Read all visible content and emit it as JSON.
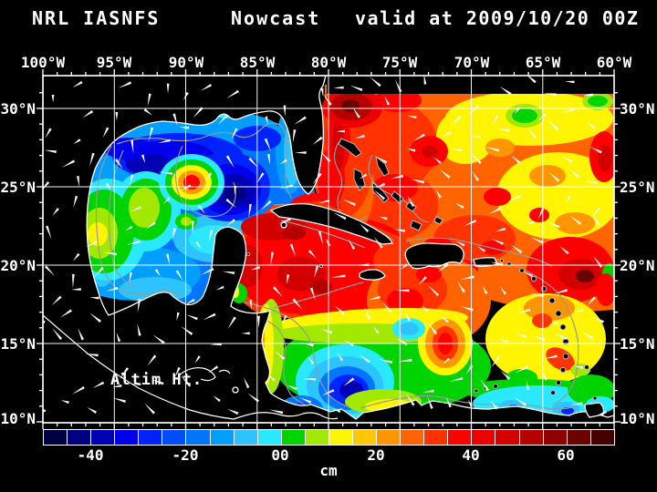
{
  "title": {
    "left": "NRL IASNFS",
    "center": "Nowcast",
    "right": "valid at 2009/10/20 00Z"
  },
  "map_label": "Altim Ht.",
  "axes": {
    "lon_labels": [
      "100°W",
      "95°W",
      "90°W",
      "85°W",
      "80°W",
      "75°W",
      "70°W",
      "65°W",
      "60°W"
    ],
    "lat_labels_left": [
      "30°N",
      "25°N",
      "20°N",
      "15°N",
      "10°N"
    ],
    "lat_labels_right": [
      "30°N",
      "25°N",
      "20°N",
      "15°N",
      "10°N"
    ]
  },
  "colorbar": {
    "unit": "cm",
    "tick_labels": [
      "-40",
      "-20",
      "00",
      "20",
      "40",
      "60"
    ],
    "min": -50,
    "max": 70,
    "interval": 5,
    "colors": [
      "#000042",
      "#00007f",
      "#0000b4",
      "#0000ec",
      "#0023ff",
      "#004cff",
      "#0075ff",
      "#009eff",
      "#2dc3ff",
      "#29e8ff",
      "#00d400",
      "#a3e800",
      "#fff500",
      "#ffc800",
      "#ff9600",
      "#ff6400",
      "#ff3200",
      "#ff0000",
      "#ee0000",
      "#d40000",
      "#b40000",
      "#8f0000",
      "#6b0000",
      "#460000"
    ]
  },
  "chart_data": {
    "type": "heatmap",
    "title": "NRL IASNFS Nowcast valid at 2009/10/20 00Z",
    "variable": "Altim Ht. (altimeter sea surface height anomaly)",
    "units": "cm",
    "x_axis": {
      "ticks": [
        "100°W",
        "95°W",
        "90°W",
        "85°W",
        "80°W",
        "75°W",
        "70°W",
        "65°W",
        "60°W"
      ],
      "range_deg_west": [
        100,
        60
      ]
    },
    "y_axis": {
      "ticks": [
        "30°N",
        "25°N",
        "20°N",
        "15°N",
        "10°N"
      ],
      "range_deg_north": [
        32,
        8.5
      ]
    },
    "colorbar": {
      "min": -50,
      "max": 70,
      "interval": 5,
      "tick_labels": [
        "-40",
        "-20",
        "00",
        "20",
        "40",
        "60"
      ],
      "unit": "cm"
    },
    "overlays": [
      "white current/wind vector arrows",
      "gray bathymetry contours",
      "white coastlines",
      "white 5-degree lat/lon grid"
    ],
    "features": [
      {
        "region": "Gulf of Mexico",
        "ssh_cm": "-35 to 0",
        "note": "broad low (blue/cyan) with a red anticyclonic eddy near 89.5W 25N and green-yellow highs in the western gulf"
      },
      {
        "region": "Gulf Stream east of Florida",
        "ssh_cm": "+40 to +65",
        "note": "red band along coast with dark-red eddy near 78.5W 30N"
      },
      {
        "region": "Atlantic 78W-60W, 20N-30N",
        "ssh_cm": "+15 to +45",
        "note": "orange-yellow field, scattered green lows, red highs, dark-red high near 63W 20N"
      },
      {
        "region": "NW Caribbean south of Cuba",
        "ssh_cm": "+35 to +55",
        "note": "extensive red high pushing through Yucatan Channel"
      },
      {
        "region": "SW Caribbean (Colombia Basin)",
        "ssh_cm": "-30 to -10",
        "note": "closed blue low near 78W 11.5N ringed by cyan and green"
      },
      {
        "region": "Eastern Caribbean",
        "ssh_cm": "0 to +30",
        "note": "yellow-orange with cyan/green along the Venezuelan coast; small red eddy near 72.5W 14.5N"
      }
    ]
  }
}
